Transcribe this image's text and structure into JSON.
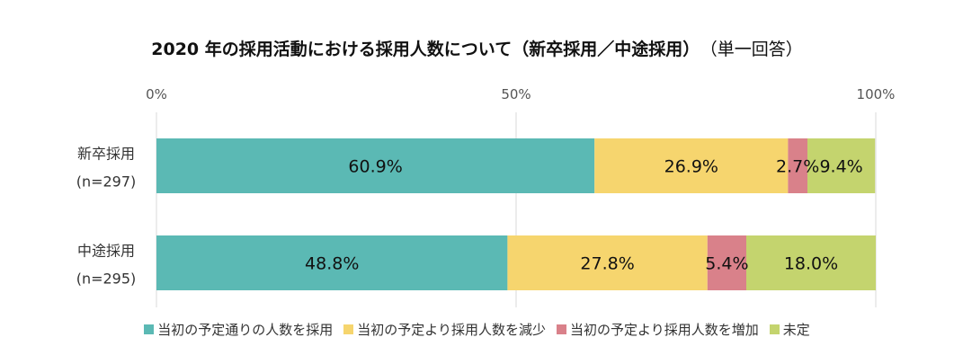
{
  "chart_data": {
    "type": "bar",
    "orientation": "horizontal",
    "stacked": true,
    "title": "2020 年の採用活動における採用人数について（新卒採用／中途採用）",
    "subtitle": "（単一回答）",
    "categories": [
      {
        "name": "新卒採用",
        "n": "(n=297)"
      },
      {
        "name": "中途採用",
        "n": "(n=295)"
      }
    ],
    "series": [
      {
        "name": "当初の予定通りの人数を採用",
        "color": "#5bb9b4",
        "values": [
          60.9,
          48.8
        ],
        "labels": [
          "60.9%",
          "48.8%"
        ]
      },
      {
        "name": "当初の予定より採用人数を減少",
        "color": "#f6d56e",
        "values": [
          26.9,
          27.8
        ],
        "labels": [
          "26.9%",
          "27.8%"
        ]
      },
      {
        "name": "当初の予定より採用人数を増加",
        "color": "#d9818a",
        "values": [
          2.7,
          5.4
        ],
        "labels": [
          "2.7%",
          "5.4%"
        ]
      },
      {
        "name": "未定",
        "color": "#c4d46e",
        "values": [
          9.4,
          18.0
        ],
        "labels": [
          "9.4%",
          "18.0%"
        ]
      }
    ],
    "xlim": [
      0,
      100
    ],
    "ticks": [
      {
        "value": 0,
        "label": "0%"
      },
      {
        "value": 50,
        "label": "50%"
      },
      {
        "value": 100,
        "label": "100%"
      }
    ],
    "grid": true,
    "legend_position": "bottom"
  }
}
